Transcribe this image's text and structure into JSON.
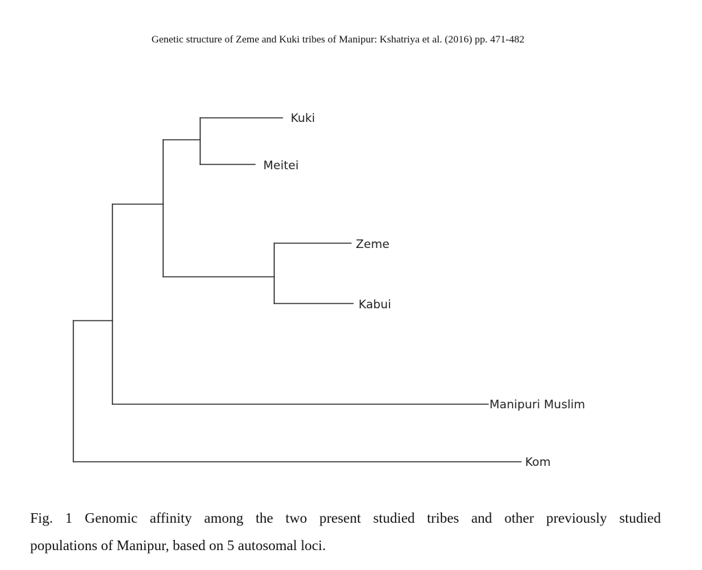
{
  "header": {
    "running_title": "Genetic structure of Zeme and Kuki tribes of Manipur: Kshatriya et al. (2016)  pp.  471-482"
  },
  "figure": {
    "type": "dendrogram",
    "tree": "(((( Kuki, Meitei ), ( Zeme, Kabui )), Manipuri Muslim ), Kom )",
    "leaves": [
      "Kuki",
      "Meitei",
      "Zeme",
      "Kabui",
      "Manipuri Muslim",
      "Kom"
    ],
    "line_color": "#333333"
  },
  "caption": {
    "line1": "Fig. 1 Genomic affinity among the two present studied tribes and other previously studied",
    "line2": "populations of Manipur, based on 5 autosomal loci."
  }
}
